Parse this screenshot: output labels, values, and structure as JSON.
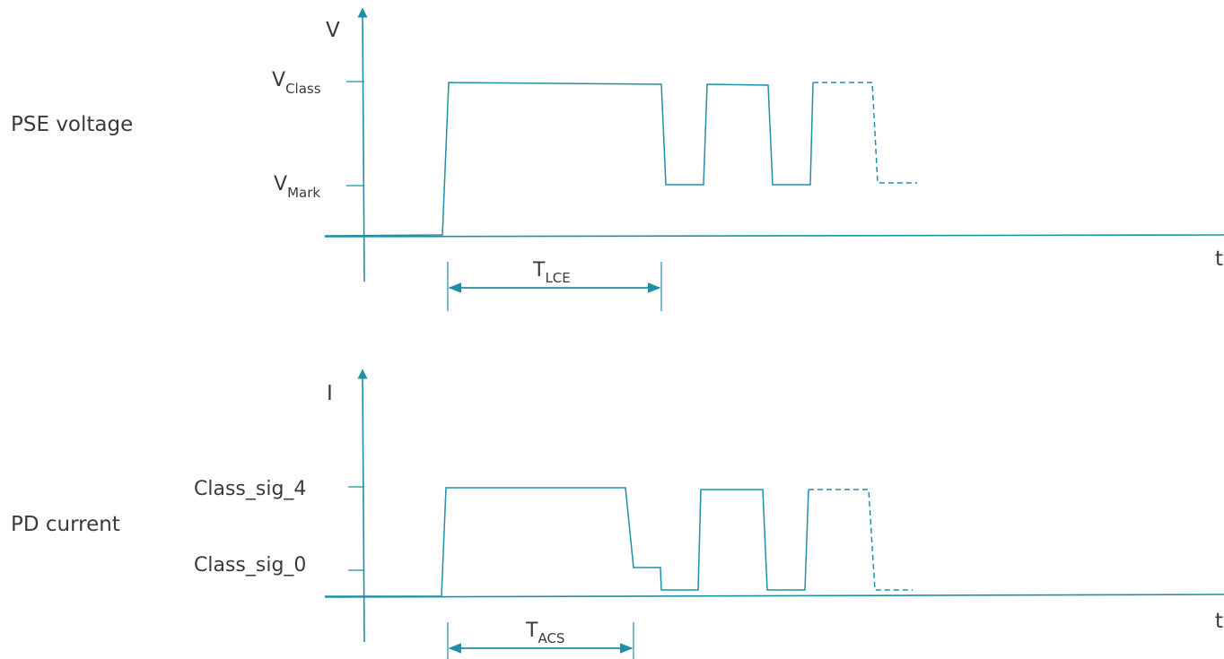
{
  "voltage_panel": {
    "row_label": "PSE voltage",
    "y_axis_label": "V",
    "x_axis_label": "t",
    "level_high": {
      "main": "V",
      "sub": "Class"
    },
    "level_low": {
      "main": "V",
      "sub": "Mark"
    },
    "interval": {
      "main": "T",
      "sub": "LCE"
    }
  },
  "current_panel": {
    "row_label": "PD current",
    "y_axis_label": "I",
    "x_axis_label": "t",
    "level_high": "Class_sig_4",
    "level_low": "Class_sig_0",
    "interval": {
      "main": "T",
      "sub": "ACS"
    }
  },
  "colors": {
    "trace": "#1f8fa8",
    "text": "#3a3a3a"
  }
}
